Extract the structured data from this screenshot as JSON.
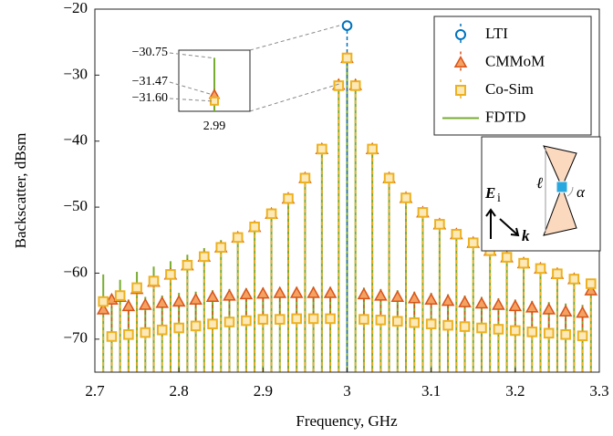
{
  "chart_data": {
    "type": "stem",
    "x_label": "Frequency, GHz",
    "y_label": "Backscatter, dBsm",
    "xlim": [
      2.7,
      3.3
    ],
    "xticks": [
      2.7,
      2.8,
      2.9,
      3,
      3.1,
      3.2,
      3.3
    ],
    "ylim": [
      -75,
      -20
    ],
    "yticks": [
      {
        "value": -20,
        "label": "−20"
      },
      {
        "value": -30,
        "label": "−30"
      },
      {
        "value": -40,
        "label": "−40"
      },
      {
        "value": -50,
        "label": "−50"
      },
      {
        "value": -60,
        "label": "−60"
      },
      {
        "value": -70,
        "label": "−70"
      }
    ],
    "legend": "upper right",
    "x": [
      2.71,
      2.72,
      2.73,
      2.74,
      2.75,
      2.76,
      2.77,
      2.78,
      2.79,
      2.8,
      2.81,
      2.82,
      2.83,
      2.84,
      2.85,
      2.86,
      2.87,
      2.88,
      2.89,
      2.9,
      2.91,
      2.92,
      2.93,
      2.94,
      2.95,
      2.96,
      2.97,
      2.98,
      2.99,
      3.0,
      3.01,
      3.02,
      3.03,
      3.04,
      3.05,
      3.06,
      3.07,
      3.08,
      3.09,
      3.1,
      3.11,
      3.12,
      3.13,
      3.14,
      3.15,
      3.16,
      3.17,
      3.18,
      3.19,
      3.2,
      3.21,
      3.22,
      3.23,
      3.24,
      3.25,
      3.26,
      3.27,
      3.28,
      3.29
    ],
    "series": [
      {
        "name": "LTI",
        "color": "#0072bd",
        "marker": "circle",
        "values": [
          null,
          null,
          null,
          null,
          null,
          null,
          null,
          null,
          null,
          null,
          null,
          null,
          null,
          null,
          null,
          null,
          null,
          null,
          null,
          null,
          null,
          null,
          null,
          null,
          null,
          null,
          null,
          null,
          null,
          -22.5,
          null,
          null,
          null,
          null,
          null,
          null,
          null,
          null,
          null,
          null,
          null,
          null,
          null,
          null,
          null,
          null,
          null,
          null,
          null,
          null,
          null,
          null,
          null,
          null,
          null,
          null,
          null,
          null,
          null
        ]
      },
      {
        "name": "CMMoM",
        "color": "#d95319",
        "marker": "triangle",
        "values": [
          -65.5,
          -64.0,
          -63.6,
          -65.0,
          -62.4,
          -64.8,
          -61.3,
          -64.5,
          -60.2,
          -64.3,
          -58.8,
          -64.0,
          -57.5,
          -63.6,
          -56.1,
          -63.4,
          -54.6,
          -63.2,
          -53.0,
          -63.1,
          -51.0,
          -63.0,
          -48.7,
          -63.0,
          -45.6,
          -63.0,
          -41.2,
          -63.0,
          -31.47,
          -27.4,
          -31.5,
          -63.2,
          -41.2,
          -63.4,
          -45.6,
          -63.6,
          -48.6,
          -63.8,
          -50.8,
          -64.0,
          -52.6,
          -64.2,
          -54.1,
          -64.4,
          -55.4,
          -64.6,
          -56.6,
          -64.8,
          -57.6,
          -65.0,
          -58.5,
          -65.2,
          -59.3,
          -65.5,
          -60.1,
          -65.8,
          -60.9,
          -66.0,
          -62.6
        ]
      },
      {
        "name": "Co-Sim",
        "color": "#edb120",
        "marker": "square",
        "values": [
          -64.3,
          -69.6,
          -63.4,
          -69.3,
          -62.2,
          -69.0,
          -61.2,
          -68.6,
          -60.2,
          -68.3,
          -58.8,
          -68.0,
          -57.5,
          -67.7,
          -56.1,
          -67.4,
          -54.6,
          -67.2,
          -53.0,
          -67.0,
          -51.0,
          -67.0,
          -48.7,
          -66.9,
          -45.6,
          -66.9,
          -41.2,
          -66.9,
          -31.6,
          -27.4,
          -31.6,
          -67.0,
          -41.2,
          -67.1,
          -45.6,
          -67.3,
          -48.6,
          -67.5,
          -50.8,
          -67.7,
          -52.6,
          -67.9,
          -54.1,
          -68.1,
          -55.4,
          -68.3,
          -56.6,
          -68.5,
          -57.6,
          -68.7,
          -58.5,
          -68.9,
          -59.3,
          -69.1,
          -60.1,
          -69.3,
          -60.9,
          -69.5,
          -61.6
        ]
      },
      {
        "name": "FDTD",
        "color": "#77ac30",
        "marker": "line",
        "values": [
          -60.2,
          -65.0,
          -61.0,
          -64.0,
          -59.8,
          -63.6,
          -59.0,
          -63.4,
          -58.2,
          -63.0,
          -57.2,
          -62.8,
          -56.2,
          -62.6,
          -55.0,
          -62.4,
          -53.8,
          -62.3,
          -52.2,
          -62.2,
          -50.3,
          -62.2,
          -48.2,
          -62.1,
          -45.2,
          -62.1,
          -40.8,
          -62.1,
          -30.75,
          -27.0,
          -30.8,
          -62.2,
          -40.8,
          -62.4,
          -45.2,
          -62.6,
          -48.2,
          -62.8,
          -50.5,
          -63.0,
          -52.3,
          -63.2,
          -53.8,
          -63.4,
          -55.1,
          -63.6,
          -56.3,
          -63.8,
          -57.3,
          -64.0,
          -58.2,
          -64.2,
          -59.0,
          -64.4,
          -59.8,
          -64.6,
          -60.6,
          -64.8,
          -61.3
        ]
      }
    ],
    "inset": {
      "xlim": [
        2.985,
        2.995
      ],
      "xticks": [
        2.99
      ],
      "ylim": [
        -31.8,
        -30.6
      ],
      "yticks": [
        {
          "value": -30.75,
          "label": "−30.75"
        },
        {
          "value": -31.47,
          "label": "−31.47"
        },
        {
          "value": -31.6,
          "label": "−31.60"
        }
      ]
    },
    "diagram": {
      "field": "E",
      "field_sub": "i",
      "wave": "k",
      "length": "ℓ",
      "angle": "α"
    }
  }
}
